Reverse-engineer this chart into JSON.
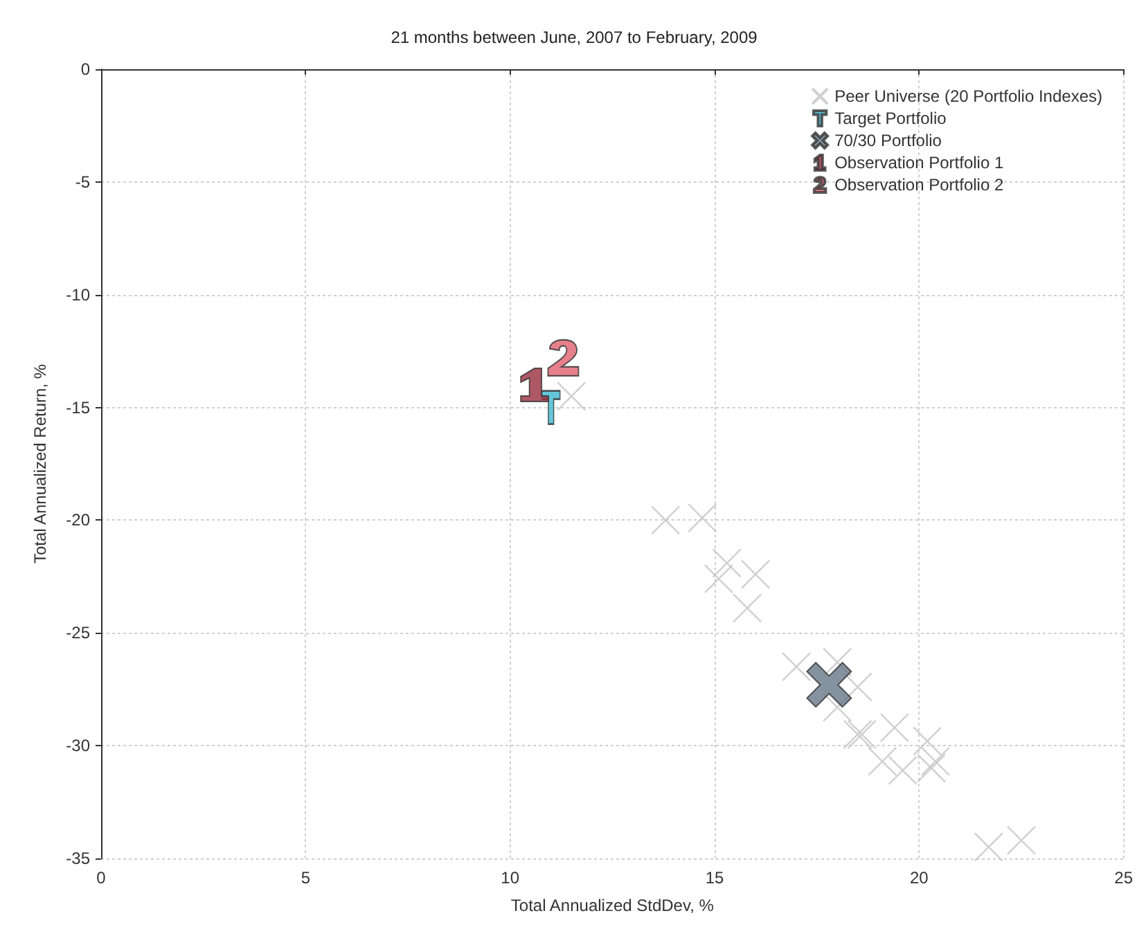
{
  "chart_data": {
    "type": "scatter",
    "title": "21 months between June, 2007 to February, 2009",
    "xlabel": "Total Annualized StdDev, %",
    "ylabel": "Total Annualized Return, %",
    "xlim": [
      0,
      25
    ],
    "ylim": [
      -35,
      0
    ],
    "xticks": [
      0,
      5,
      10,
      15,
      20,
      25
    ],
    "yticks": [
      -35,
      -30,
      -25,
      -20,
      -15,
      -10,
      -5,
      0
    ],
    "grid": true,
    "legend": "top right",
    "series": [
      {
        "name": "Peer Universe (20 Portfolio Indexes)",
        "color": "#c4c4c4",
        "x": [
          11.5,
          13.8,
          14.7,
          15.3,
          15.1,
          16.0,
          15.8,
          17.0,
          18.0,
          18.5,
          18.0,
          18.5,
          18.6,
          19.4,
          19.1,
          19.6,
          20.2,
          20.4,
          20.3,
          21.7,
          22.5
        ],
        "values": [
          -14.5,
          -20.0,
          -19.9,
          -21.9,
          -22.6,
          -22.4,
          -23.9,
          -26.5,
          -26.3,
          -27.4,
          -28.3,
          -29.5,
          -29.5,
          -29.2,
          -30.7,
          -31.1,
          -29.8,
          -30.7,
          -31.0,
          -34.5,
          -34.2
        ]
      },
      {
        "name": "Target Portfolio",
        "color": "#3fb8cf",
        "x": [
          11.0
        ],
        "values": [
          -15.0
        ]
      },
      {
        "name": "70/30 Portfolio",
        "color": "#667788",
        "x": [
          17.8
        ],
        "values": [
          -27.3
        ]
      },
      {
        "name": "Observation Portfolio 1",
        "color": "#9a2e3e",
        "x": [
          10.6
        ],
        "values": [
          -14.0
        ]
      },
      {
        "name": "Observation Portfolio 2",
        "color": "#e0606e",
        "x": [
          11.3
        ],
        "values": [
          -12.8
        ]
      }
    ]
  }
}
